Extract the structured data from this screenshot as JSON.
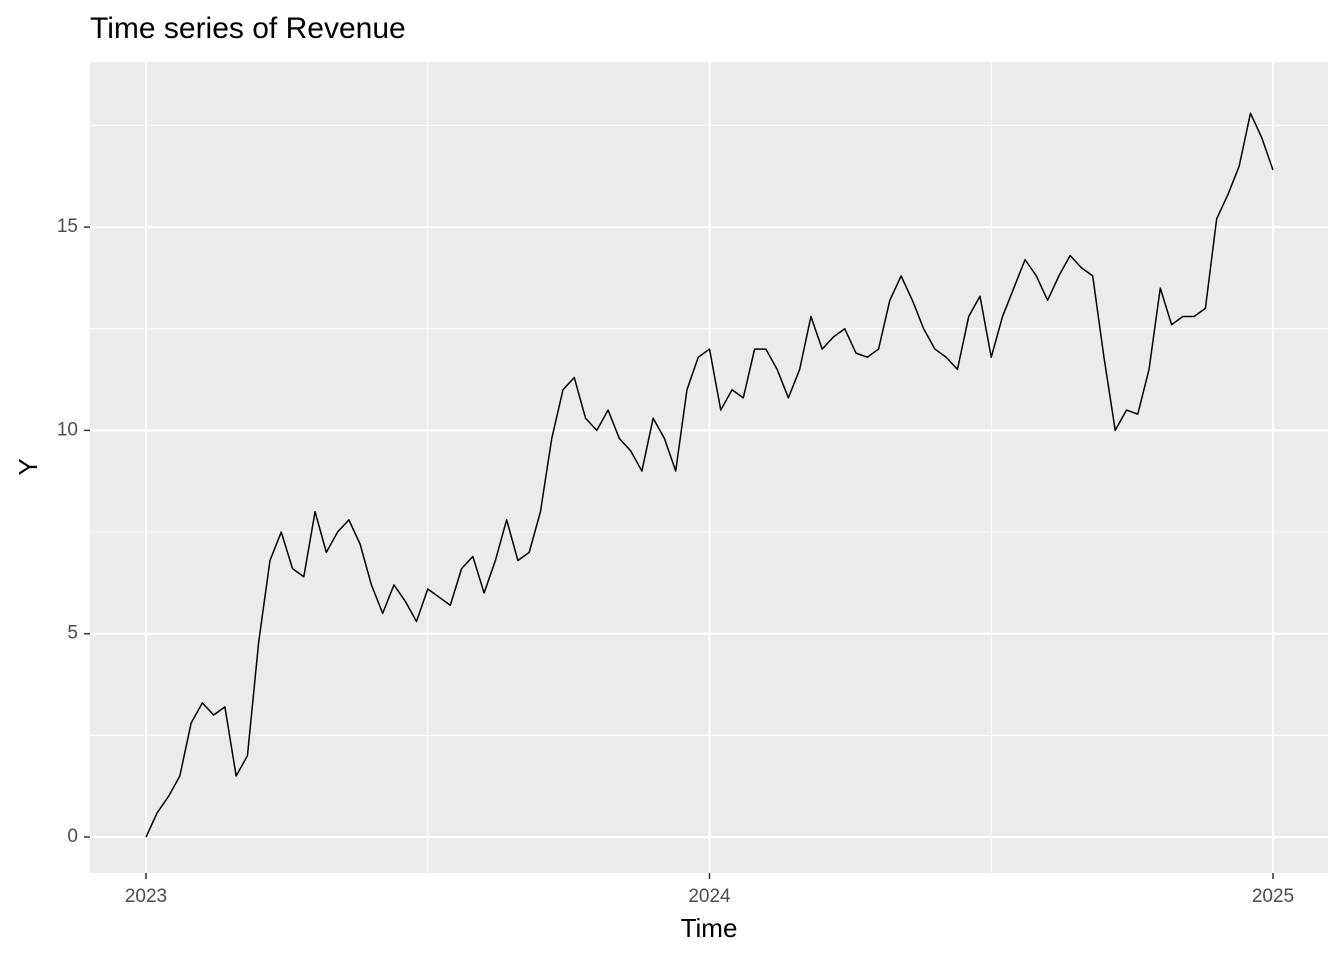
{
  "chart_data": {
    "type": "line",
    "title": "Time series of Revenue",
    "x_label": "Time",
    "y_label": "Y",
    "x": [
      2023.0,
      2023.02,
      2023.04,
      2023.06,
      2023.08,
      2023.1,
      2023.12,
      2023.14,
      2023.16,
      2023.18,
      2023.2,
      2023.22,
      2023.24,
      2023.26,
      2023.28,
      2023.3,
      2023.32,
      2023.34,
      2023.36,
      2023.38,
      2023.4,
      2023.42,
      2023.44,
      2023.46,
      2023.48,
      2023.5,
      2023.52,
      2023.54,
      2023.56,
      2023.58,
      2023.6,
      2023.62,
      2023.64,
      2023.66,
      2023.68,
      2023.7,
      2023.72,
      2023.74,
      2023.76,
      2023.78,
      2023.8,
      2023.82,
      2023.84,
      2023.86,
      2023.88,
      2023.9,
      2023.92,
      2023.94,
      2023.96,
      2023.98,
      2024.0,
      2024.02,
      2024.04,
      2024.06,
      2024.08,
      2024.1,
      2024.12,
      2024.14,
      2024.16,
      2024.18,
      2024.2,
      2024.22,
      2024.24,
      2024.26,
      2024.28,
      2024.3,
      2024.32,
      2024.34,
      2024.36,
      2024.38,
      2024.4,
      2024.42,
      2024.44,
      2024.46,
      2024.48,
      2024.5,
      2024.52,
      2024.54,
      2024.56,
      2024.58,
      2024.6,
      2024.62,
      2024.64,
      2024.66,
      2024.68,
      2024.7,
      2024.72,
      2024.74,
      2024.76,
      2024.78,
      2024.8,
      2024.82,
      2024.84,
      2024.86,
      2024.88,
      2024.9,
      2024.92,
      2024.94,
      2024.96,
      2024.98,
      2025.0
    ],
    "series": [
      {
        "name": "Revenue",
        "color": "#000000",
        "values": [
          0,
          0.6,
          1.0,
          1.5,
          2.8,
          3.3,
          3.0,
          3.2,
          1.5,
          2.0,
          4.8,
          6.8,
          7.5,
          6.6,
          6.4,
          8.0,
          7.0,
          7.5,
          7.8,
          7.2,
          6.2,
          5.5,
          6.2,
          5.8,
          5.3,
          6.1,
          5.9,
          5.7,
          6.6,
          6.9,
          6.0,
          6.8,
          7.8,
          6.8,
          7.0,
          8.0,
          9.8,
          11.0,
          11.3,
          10.3,
          10.0,
          10.5,
          9.8,
          9.5,
          9.0,
          10.3,
          9.8,
          9.0,
          11.0,
          11.8,
          12.0,
          10.5,
          11.0,
          10.8,
          12.0,
          12.0,
          11.5,
          10.8,
          11.5,
          12.8,
          12.0,
          12.3,
          12.5,
          11.9,
          11.8,
          12.0,
          13.2,
          13.8,
          13.2,
          12.5,
          12.0,
          11.8,
          11.5,
          12.8,
          13.3,
          11.8,
          12.8,
          13.5,
          14.2,
          13.8,
          13.2,
          13.8,
          14.3,
          14.0,
          13.8,
          11.8,
          10.0,
          10.5,
          10.4,
          11.5,
          13.5,
          12.6,
          12.8,
          12.8,
          13.0,
          15.2,
          15.8,
          16.5,
          17.8,
          17.2,
          16.4
        ]
      }
    ],
    "xlim": [
      2022.9006,
      2025.0976
    ],
    "xticks": [
      2023,
      2024,
      2025
    ],
    "x_minor_ticks": [
      2023.5,
      2024.5
    ],
    "ylim": [
      -0.885,
      19.06
    ],
    "yticks": [
      0,
      5,
      10,
      15
    ],
    "y_minor_ticks": [
      2.5,
      7.5,
      12.5,
      17.5
    ],
    "grid": true,
    "panel_color": "#ebebeb"
  }
}
